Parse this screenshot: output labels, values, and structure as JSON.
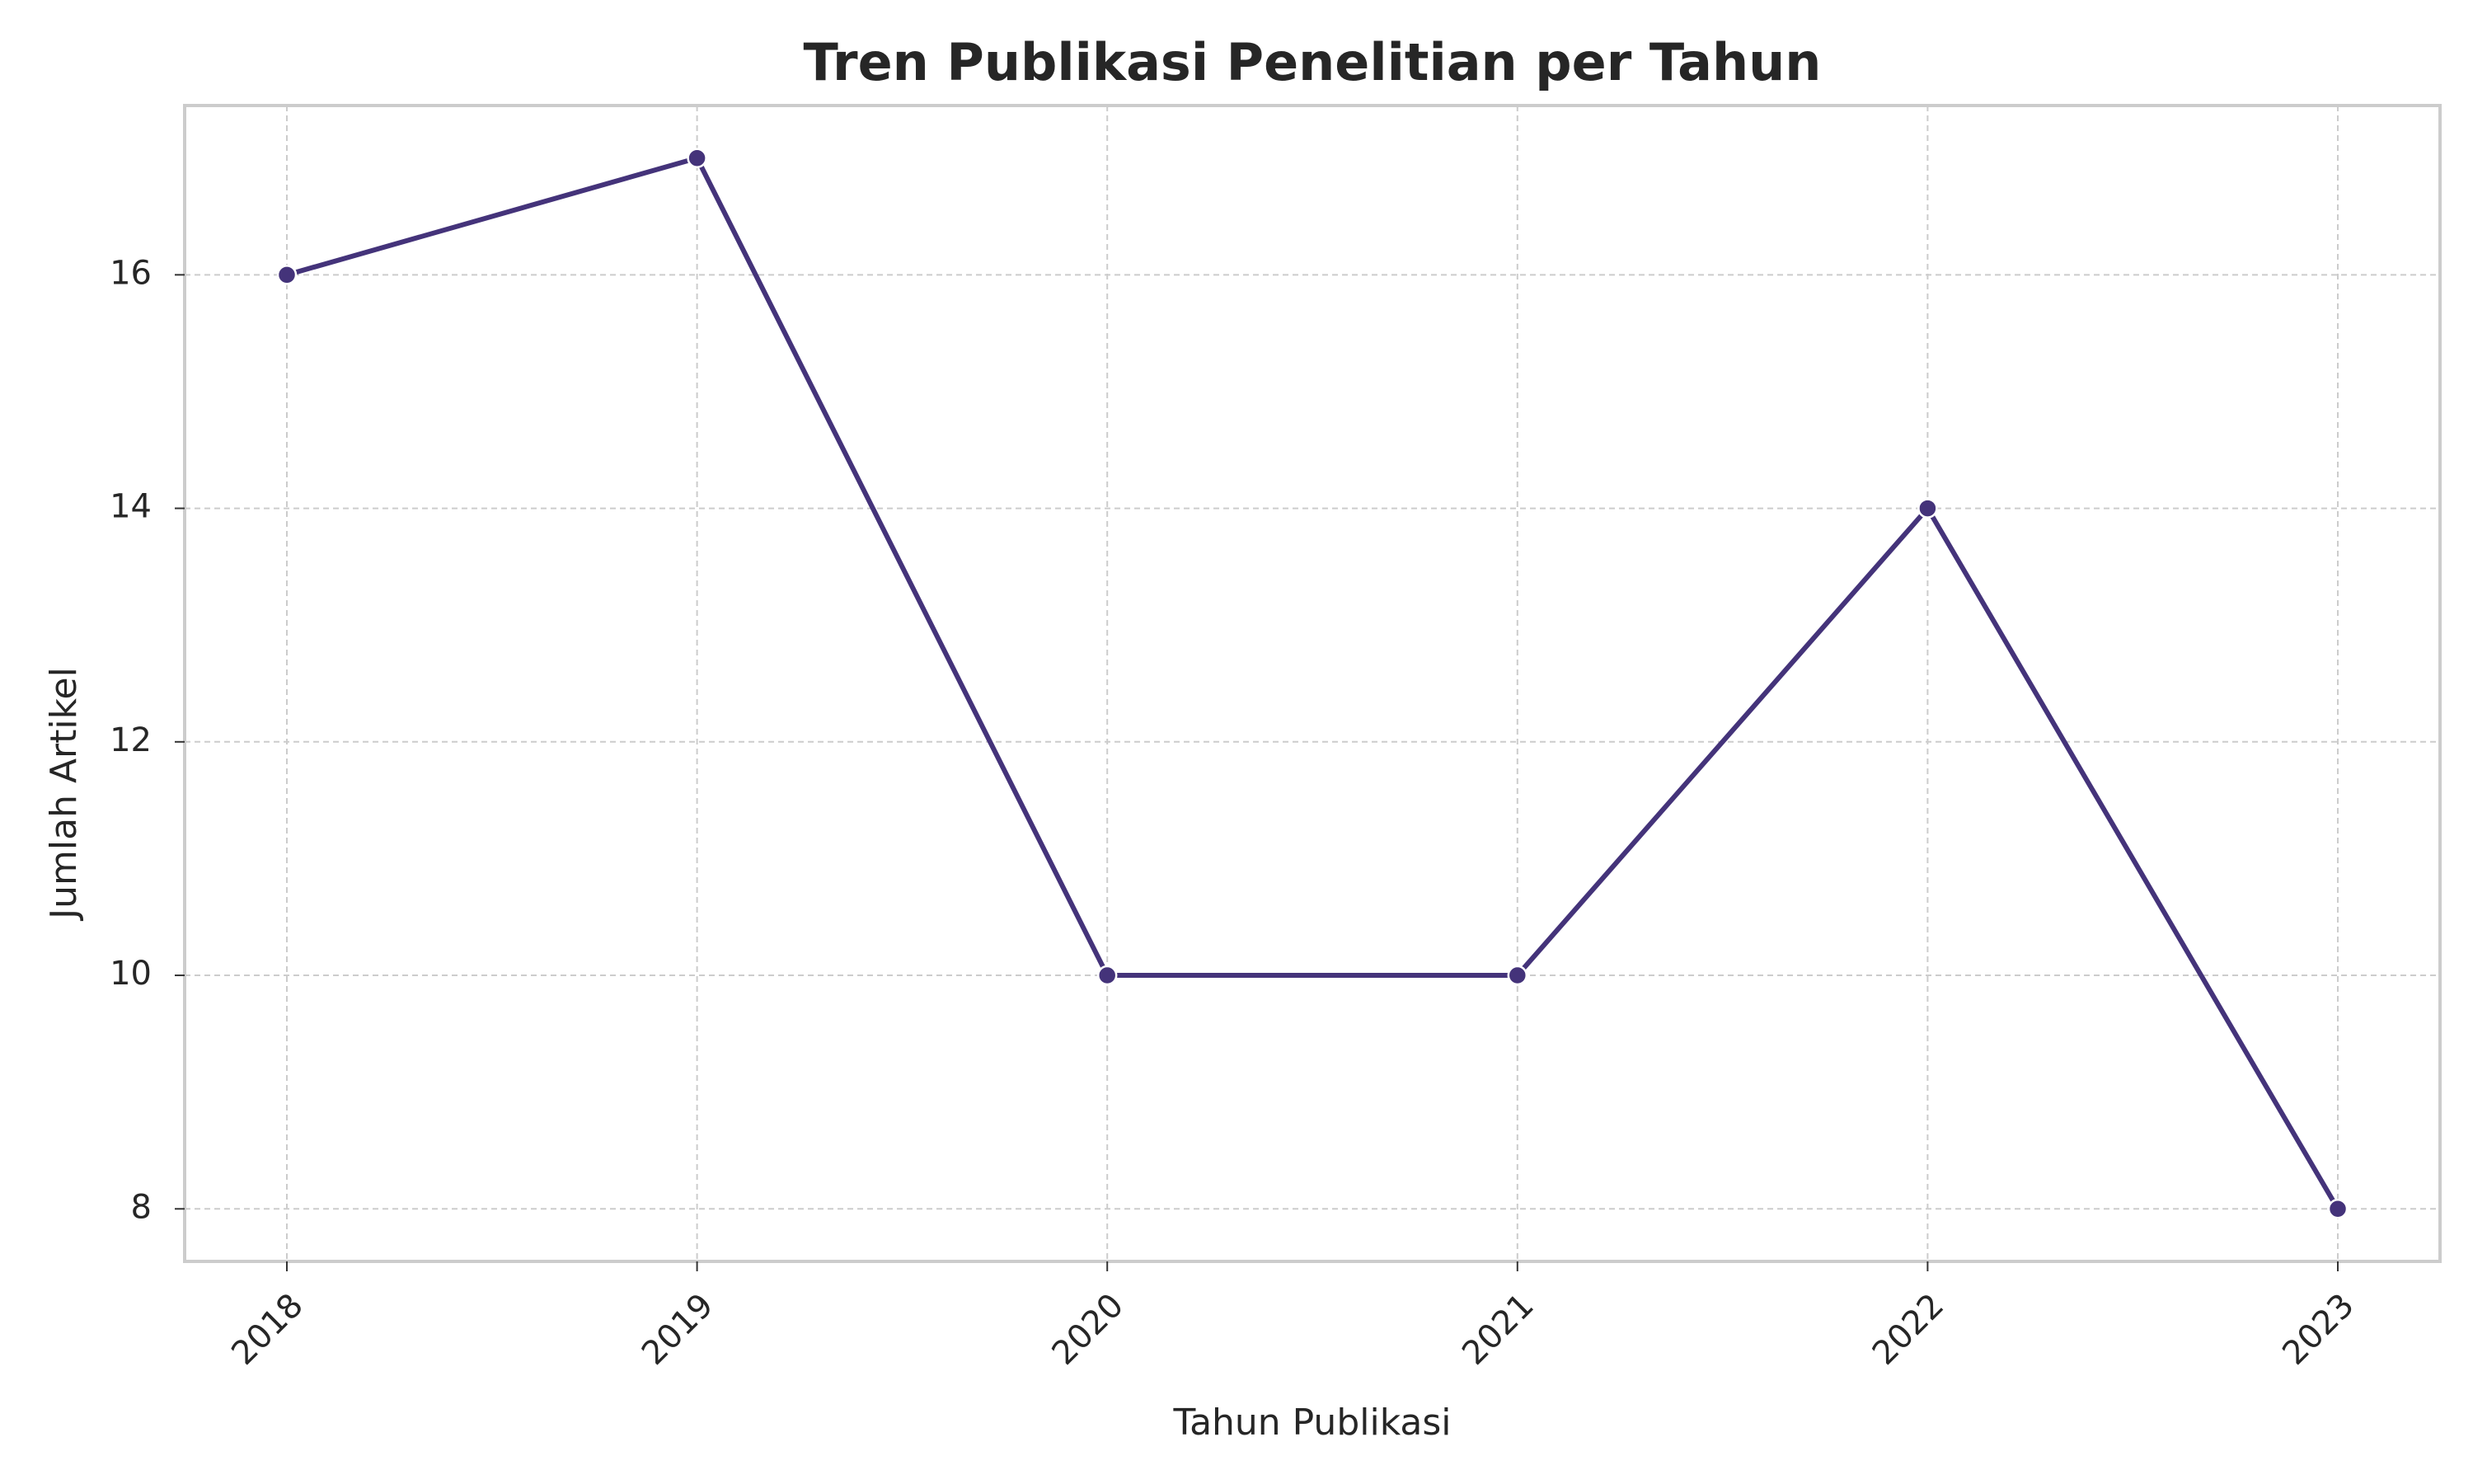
{
  "chart_data": {
    "type": "line",
    "title": "Tren Publikasi Penelitian per Tahun",
    "xlabel": "Tahun Publikasi",
    "ylabel": "Jumlah Artikel",
    "categories": [
      "2018",
      "2019",
      "2020",
      "2021",
      "2022",
      "2023"
    ],
    "values": [
      16,
      17,
      10,
      10,
      14,
      8
    ],
    "yticks": [
      8,
      10,
      12,
      14,
      16
    ],
    "ylim": [
      7.55,
      17.45
    ],
    "grid": true,
    "legend": "none",
    "line_color": "#44337a",
    "marker_color": "#44337a",
    "x_tick_rotation": 45
  }
}
